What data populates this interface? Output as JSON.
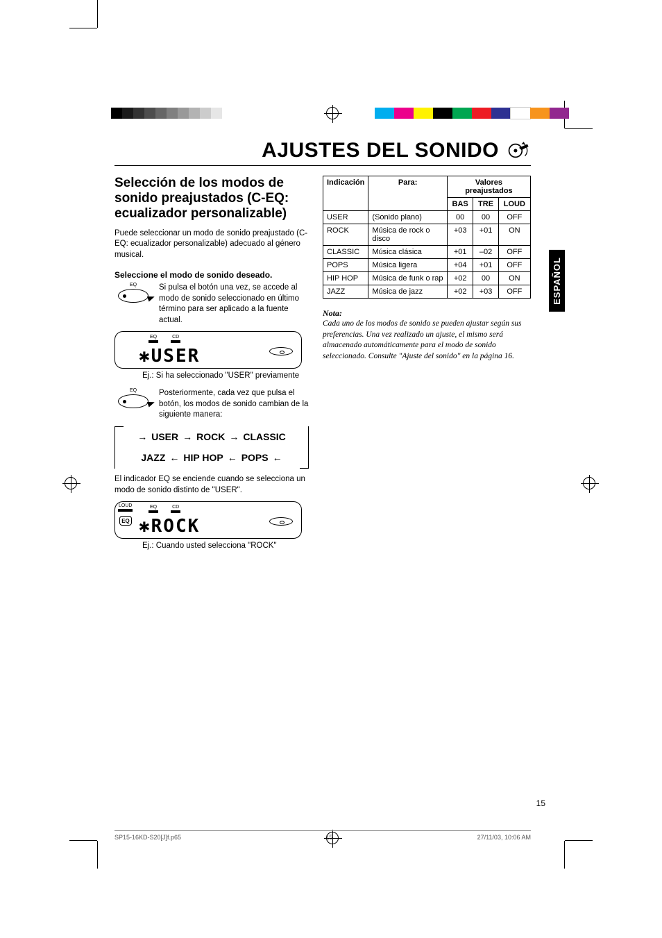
{
  "registration": {
    "gray_shades": [
      "#000000",
      "#1a1a1a",
      "#333333",
      "#4d4d4d",
      "#666666",
      "#808080",
      "#999999",
      "#b3b3b3",
      "#cccccc",
      "#e6e6e6"
    ],
    "cmyk_bars": [
      "#00aeef",
      "#ec008c",
      "#fff200",
      "#000000",
      "#00a651",
      "#ed1c24",
      "#2e3192",
      "#ffffff",
      "#f7941d",
      "#92278f"
    ]
  },
  "header": {
    "title": "AJUSTES DEL SONIDO"
  },
  "side_tab": "ESPAÑOL",
  "section": {
    "title": "Selección de los modos de sonido preajustados (C-EQ: ecualizador personalizable)",
    "intro": "Puede seleccionar un modo de sonido preajustado (C-EQ: ecualizador personalizable) adecuado al género musical.",
    "step_head": "Seleccione el modo de sonido deseado.",
    "step1_text": "Si pulsa el botón una vez, se accede al modo de sonido seleccionado en último término para ser aplicado a la fuente actual.",
    "eq_label": "EQ",
    "lcd1": {
      "indicators": [
        "EQ",
        "CD"
      ],
      "seg": "✱USER"
    },
    "caption1": "Ej.: Si ha seleccionado \"USER\" previamente",
    "step2_text": "Posteriormente, cada vez que pulsa el botón, los modos de sonido cambian de la siguiente manera:",
    "cycle": [
      "USER",
      "ROCK",
      "CLASSIC",
      "POPS",
      "HIP HOP",
      "JAZZ"
    ],
    "after_cycle": "El indicador EQ se enciende cuando se selecciona un modo de sonido distinto de \"USER\".",
    "lcd2": {
      "indicators": [
        "LOUD",
        "EQ",
        "CD"
      ],
      "eq_badge": "EQ",
      "seg": "✱ROCK"
    },
    "caption2": "Ej.: Cuando usted selecciona \"ROCK\""
  },
  "table": {
    "head1": [
      "Indicación",
      "Para:",
      "Valores preajustados"
    ],
    "head2": [
      "BAS",
      "TRE",
      "LOUD"
    ],
    "rows": [
      {
        "ind": "USER",
        "for": "(Sonido plano)",
        "bas": "00",
        "tre": "00",
        "loud": "OFF"
      },
      {
        "ind": "ROCK",
        "for": "Música de rock o disco",
        "bas": "+03",
        "tre": "+01",
        "loud": "ON"
      },
      {
        "ind": "CLASSIC",
        "for": "Música clásica",
        "bas": "+01",
        "tre": "–02",
        "loud": "OFF"
      },
      {
        "ind": "POPS",
        "for": "Música ligera",
        "bas": "+04",
        "tre": "+01",
        "loud": "OFF"
      },
      {
        "ind": "HIP HOP",
        "for": "Música de funk o rap",
        "bas": "+02",
        "tre": "00",
        "loud": "ON"
      },
      {
        "ind": "JAZZ",
        "for": "Música de jazz",
        "bas": "+02",
        "tre": "+03",
        "loud": "OFF"
      }
    ]
  },
  "note": {
    "head": "Nota:",
    "body": "Cada uno de los modos de sonido se pueden ajustar según sus preferencias. Una vez realizado un ajuste, el mismo será almacenado automáticamente para el modo de sonido seleccionado. Consulte \"Ajuste del sonido\" en la página 16."
  },
  "page_number": "15",
  "footer": {
    "file": "SP15-16KD-S20[J]f.p65",
    "page": "15",
    "date": "27/11/03, 10:06 AM"
  }
}
